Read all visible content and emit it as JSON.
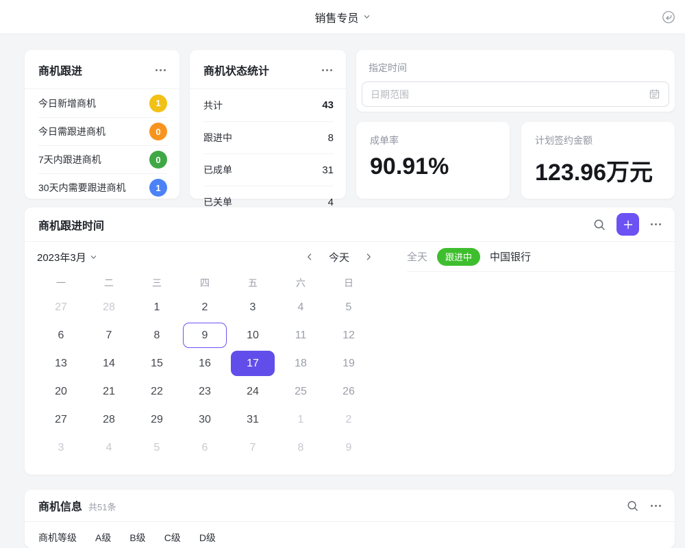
{
  "header": {
    "title": "销售专员"
  },
  "accent": {
    "purple": "#6c52f2",
    "purple_selected": "#614eea"
  },
  "icons": {
    "header_right": "return-arrow-icon",
    "more": "ellipsis",
    "search": "magnifier",
    "add": "plus",
    "date_input": "calendar",
    "caret": "chevron-down",
    "prev": "chevron-left",
    "next": "chevron-right"
  },
  "followup_card": {
    "title": "商机跟进",
    "items": [
      {
        "label": "今日新增商机",
        "count": "1",
        "color": "#f2c116"
      },
      {
        "label": "今日需跟进商机",
        "count": "0",
        "color": "#f7941f"
      },
      {
        "label": "7天内跟进商机",
        "count": "0",
        "color": "#3fa845"
      },
      {
        "label": "30天内需要跟进商机",
        "count": "1",
        "color": "#4c82f7"
      }
    ]
  },
  "status_card": {
    "title": "商机状态统计",
    "items": [
      {
        "label": "共计",
        "value": "43",
        "bold": true
      },
      {
        "label": "跟进中",
        "value": "8",
        "bold": false
      },
      {
        "label": "已成单",
        "value": "31",
        "bold": false
      },
      {
        "label": "已关单",
        "value": "4",
        "bold": false
      }
    ]
  },
  "date_filter": {
    "label": "指定时间",
    "placeholder": "日期范围"
  },
  "stats": [
    {
      "label": "成单率",
      "value": "90.91%"
    },
    {
      "label": "计划签约金额",
      "value": "123.96万元"
    }
  ],
  "calendar_card": {
    "title": "商机跟进时间",
    "month": "2023年3月",
    "today_label": "今天",
    "weekdays": [
      "一",
      "二",
      "三",
      "四",
      "五",
      "六",
      "日"
    ],
    "weeks": [
      [
        {
          "d": "27",
          "state": "out"
        },
        {
          "d": "28",
          "state": "out"
        },
        {
          "d": "1",
          "state": "wd"
        },
        {
          "d": "2",
          "state": "wd"
        },
        {
          "d": "3",
          "state": "wd"
        },
        {
          "d": "4",
          "state": "we"
        },
        {
          "d": "5",
          "state": "we"
        }
      ],
      [
        {
          "d": "6",
          "state": "wd"
        },
        {
          "d": "7",
          "state": "wd"
        },
        {
          "d": "8",
          "state": "wd"
        },
        {
          "d": "9",
          "state": "today"
        },
        {
          "d": "10",
          "state": "wd"
        },
        {
          "d": "11",
          "state": "we"
        },
        {
          "d": "12",
          "state": "we"
        }
      ],
      [
        {
          "d": "13",
          "state": "wd"
        },
        {
          "d": "14",
          "state": "wd"
        },
        {
          "d": "15",
          "state": "wd"
        },
        {
          "d": "16",
          "state": "wd"
        },
        {
          "d": "17",
          "state": "sel"
        },
        {
          "d": "18",
          "state": "we"
        },
        {
          "d": "19",
          "state": "we"
        }
      ],
      [
        {
          "d": "20",
          "state": "wd"
        },
        {
          "d": "21",
          "state": "wd"
        },
        {
          "d": "22",
          "state": "wd"
        },
        {
          "d": "23",
          "state": "wd"
        },
        {
          "d": "24",
          "state": "wd"
        },
        {
          "d": "25",
          "state": "we"
        },
        {
          "d": "26",
          "state": "we"
        }
      ],
      [
        {
          "d": "27",
          "state": "wd"
        },
        {
          "d": "28",
          "state": "wd"
        },
        {
          "d": "29",
          "state": "wd"
        },
        {
          "d": "30",
          "state": "wd"
        },
        {
          "d": "31",
          "state": "wd"
        },
        {
          "d": "1",
          "state": "out"
        },
        {
          "d": "2",
          "state": "out"
        }
      ],
      [
        {
          "d": "3",
          "state": "out"
        },
        {
          "d": "4",
          "state": "out"
        },
        {
          "d": "5",
          "state": "out"
        },
        {
          "d": "6",
          "state": "out"
        },
        {
          "d": "7",
          "state": "out"
        },
        {
          "d": "8",
          "state": "out"
        },
        {
          "d": "9",
          "state": "out"
        }
      ]
    ],
    "event": {
      "allday_label": "全天",
      "status": "跟进中",
      "status_color": "#3ebe2e",
      "name": "中国银行"
    }
  },
  "info_card": {
    "title": "商机信息",
    "count": "共51条",
    "filter_label": "商机等级",
    "options": [
      "A级",
      "B级",
      "C级",
      "D级"
    ]
  }
}
